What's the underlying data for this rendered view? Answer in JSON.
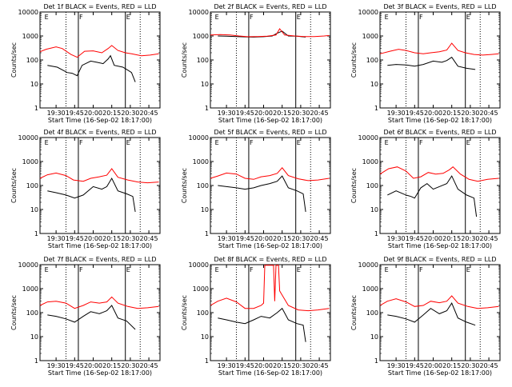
{
  "figure": {
    "xaxis_label": "Start Time (16-Sep-02 18:17:00)",
    "yaxis_label": "Counts/sec",
    "y_tick_labels": [
      "1",
      "10",
      "100",
      "1000",
      "10000"
    ],
    "x_tick_labels": [
      "19:30",
      "19:45",
      "20:00",
      "20:15",
      "20:30",
      "20:45"
    ],
    "legend_colors": {
      "events": "#000000",
      "lld": "#ff0000"
    }
  },
  "chart_data": [
    {
      "type": "line",
      "title": "Det 1f BLACK = Events, RED = LLD",
      "markers": [
        "E",
        "F",
        "E"
      ],
      "yscale": "log",
      "ylim": [
        1,
        10000
      ],
      "xlim": [
        "19:17",
        "20:54"
      ],
      "series": [
        {
          "name": "Events",
          "color": "#000000",
          "x": [
            "19:23",
            "19:31",
            "19:39",
            "19:43",
            "19:47",
            "19:51",
            "19:58",
            "20:03",
            "20:08",
            "20:12",
            "20:14",
            "20:17",
            "20:24",
            "20:29",
            "20:31",
            "20:34"
          ],
          "y": [
            60,
            50,
            30,
            28,
            22,
            60,
            90,
            80,
            70,
            110,
            150,
            60,
            50,
            35,
            30,
            12
          ]
        },
        {
          "name": "LLD",
          "color": "#ff0000",
          "x": [
            "19:17",
            "19:22",
            "19:30",
            "19:35",
            "19:42",
            "19:47",
            "19:53",
            "20:00",
            "20:07",
            "20:12",
            "20:15",
            "20:20",
            "20:26",
            "20:31",
            "20:39",
            "20:46",
            "20:53"
          ],
          "y": [
            220,
            280,
            350,
            300,
            170,
            130,
            230,
            240,
            200,
            300,
            400,
            250,
            200,
            180,
            150,
            160,
            180
          ]
        }
      ]
    },
    {
      "type": "line",
      "title": "Det 2f BLACK = Events, RED = LLD",
      "markers": [
        "E",
        "F",
        "E"
      ],
      "yscale": "log",
      "ylim": [
        1,
        10000
      ],
      "xlim": [
        "19:17",
        "20:54"
      ],
      "series": [
        {
          "name": "Events",
          "color": "#000000",
          "x": [
            "19:23",
            "19:30",
            "19:38",
            "19:45",
            "19:52",
            "20:00",
            "20:07",
            "20:11",
            "20:15",
            "20:20",
            "20:27",
            "20:34"
          ],
          "y": [
            1000,
            980,
            950,
            920,
            900,
            930,
            1000,
            1300,
            1600,
            1000,
            980,
            900
          ]
        },
        {
          "name": "LLD",
          "color": "#ff0000",
          "x": [
            "19:17",
            "19:25",
            "19:33",
            "19:40",
            "19:47",
            "19:55",
            "20:03",
            "20:10",
            "20:13",
            "20:17",
            "20:25",
            "20:33",
            "20:41",
            "20:49",
            "20:53"
          ],
          "y": [
            1100,
            1150,
            1100,
            1000,
            930,
            950,
            980,
            1100,
            2000,
            1100,
            1000,
            950,
            950,
            1000,
            1050
          ]
        }
      ]
    },
    {
      "type": "line",
      "title": "Det 3f BLACK = Events, RED = LLD",
      "markers": [
        "E",
        "F",
        "E"
      ],
      "yscale": "log",
      "ylim": [
        1,
        10000
      ],
      "xlim": [
        "19:17",
        "20:54"
      ],
      "series": [
        {
          "name": "Events",
          "color": "#000000",
          "x": [
            "19:23",
            "19:30",
            "19:38",
            "19:45",
            "19:52",
            "20:00",
            "20:07",
            "20:11",
            "20:15",
            "20:20",
            "20:27",
            "20:34"
          ],
          "y": [
            60,
            65,
            62,
            55,
            65,
            90,
            80,
            95,
            130,
            55,
            45,
            40
          ]
        },
        {
          "name": "LLD",
          "color": "#ff0000",
          "x": [
            "19:17",
            "19:25",
            "19:32",
            "19:38",
            "19:45",
            "19:52",
            "19:58",
            "20:05",
            "20:11",
            "20:15",
            "20:20",
            "20:26",
            "20:33",
            "20:40",
            "20:47",
            "20:53"
          ],
          "y": [
            180,
            230,
            280,
            250,
            200,
            180,
            200,
            220,
            260,
            500,
            250,
            200,
            170,
            160,
            170,
            180
          ]
        }
      ]
    },
    {
      "type": "line",
      "title": "Det 4f BLACK = Events, RED = LLD",
      "markers": [
        "E",
        "F",
        "E"
      ],
      "yscale": "log",
      "ylim": [
        1,
        10000
      ],
      "xlim": [
        "19:17",
        "20:54"
      ],
      "series": [
        {
          "name": "Events",
          "color": "#000000",
          "x": [
            "19:23",
            "19:30",
            "19:38",
            "19:45",
            "19:52",
            "20:00",
            "20:07",
            "20:11",
            "20:15",
            "20:20",
            "20:27",
            "20:32",
            "20:34"
          ],
          "y": [
            60,
            50,
            40,
            30,
            40,
            90,
            70,
            90,
            200,
            60,
            45,
            35,
            8
          ]
        },
        {
          "name": "LLD",
          "color": "#ff0000",
          "x": [
            "19:17",
            "19:23",
            "19:30",
            "19:38",
            "19:44",
            "19:52",
            "19:58",
            "20:05",
            "20:11",
            "20:15",
            "20:20",
            "20:28",
            "20:36",
            "20:44",
            "20:53"
          ],
          "y": [
            200,
            280,
            330,
            260,
            170,
            150,
            200,
            230,
            270,
            500,
            220,
            170,
            140,
            130,
            140
          ]
        }
      ]
    },
    {
      "type": "line",
      "title": "Det 5f BLACK = Events, RED = LLD",
      "markers": [
        "E",
        "F",
        "E"
      ],
      "yscale": "log",
      "ylim": [
        1,
        10000
      ],
      "xlim": [
        "19:17",
        "20:54"
      ],
      "series": [
        {
          "name": "Events",
          "color": "#000000",
          "x": [
            "19:23",
            "19:30",
            "19:38",
            "19:45",
            "19:52",
            "19:58",
            "20:05",
            "20:11",
            "20:15",
            "20:20",
            "20:27",
            "20:32",
            "20:34"
          ],
          "y": [
            100,
            90,
            80,
            70,
            80,
            100,
            120,
            150,
            250,
            80,
            60,
            45,
            8
          ]
        },
        {
          "name": "LLD",
          "color": "#ff0000",
          "x": [
            "19:17",
            "19:23",
            "19:30",
            "19:38",
            "19:45",
            "19:52",
            "19:58",
            "20:05",
            "20:11",
            "20:15",
            "20:20",
            "20:28",
            "20:36",
            "20:44",
            "20:53"
          ],
          "y": [
            200,
            250,
            330,
            300,
            200,
            180,
            230,
            260,
            320,
            550,
            260,
            190,
            160,
            170,
            200
          ]
        }
      ]
    },
    {
      "type": "line",
      "title": "Det 6f BLACK = Events, RED = LLD",
      "markers": [
        "E",
        "F",
        "E"
      ],
      "yscale": "log",
      "ylim": [
        1,
        10000
      ],
      "xlim": [
        "19:17",
        "20:54"
      ],
      "series": [
        {
          "name": "Events",
          "color": "#000000",
          "x": [
            "19:23",
            "19:30",
            "19:38",
            "19:42",
            "19:45",
            "19:50",
            "19:55",
            "20:00",
            "20:05",
            "20:11",
            "20:15",
            "20:20",
            "20:27",
            "20:33",
            "20:35"
          ],
          "y": [
            40,
            60,
            40,
            35,
            30,
            80,
            120,
            70,
            90,
            120,
            250,
            70,
            40,
            30,
            5
          ]
        },
        {
          "name": "LLD",
          "color": "#ff0000",
          "x": [
            "19:17",
            "19:24",
            "19:31",
            "19:38",
            "19:44",
            "19:50",
            "19:56",
            "20:02",
            "20:08",
            "20:13",
            "20:16",
            "20:22",
            "20:29",
            "20:36",
            "20:44",
            "20:53"
          ],
          "y": [
            300,
            500,
            600,
            400,
            200,
            230,
            350,
            300,
            320,
            450,
            600,
            300,
            180,
            150,
            180,
            200
          ]
        }
      ]
    },
    {
      "type": "line",
      "title": "Det 7f BLACK = Events, RED = LLD",
      "markers": [
        "E",
        "F",
        "E"
      ],
      "yscale": "log",
      "ylim": [
        1,
        10000
      ],
      "xlim": [
        "19:17",
        "20:54"
      ],
      "series": [
        {
          "name": "Events",
          "color": "#000000",
          "x": [
            "19:23",
            "19:30",
            "19:38",
            "19:45",
            "19:52",
            "19:58",
            "20:05",
            "20:11",
            "20:15",
            "20:20",
            "20:27",
            "20:34"
          ],
          "y": [
            80,
            70,
            55,
            40,
            70,
            110,
            90,
            120,
            200,
            60,
            45,
            20
          ]
        },
        {
          "name": "LLD",
          "color": "#ff0000",
          "x": [
            "19:17",
            "19:23",
            "19:30",
            "19:38",
            "19:45",
            "19:52",
            "19:58",
            "20:05",
            "20:11",
            "20:15",
            "20:20",
            "20:28",
            "20:36",
            "20:44",
            "20:53"
          ],
          "y": [
            200,
            280,
            300,
            250,
            150,
            200,
            280,
            250,
            280,
            450,
            250,
            180,
            150,
            160,
            180
          ]
        }
      ]
    },
    {
      "type": "line",
      "title": "Det 8f BLACK = Events, RED = LLD",
      "markers": [
        "E",
        "F",
        "E"
      ],
      "yscale": "log",
      "ylim": [
        1,
        10000
      ],
      "xlim": [
        "19:17",
        "20:54"
      ],
      "series": [
        {
          "name": "Events",
          "color": "#000000",
          "x": [
            "19:23",
            "19:30",
            "19:38",
            "19:45",
            "19:52",
            "19:58",
            "20:05",
            "20:11",
            "20:15",
            "20:20",
            "20:27",
            "20:32",
            "20:34"
          ],
          "y": [
            60,
            50,
            40,
            35,
            50,
            70,
            60,
            100,
            150,
            50,
            35,
            30,
            6
          ]
        },
        {
          "name": "LLD",
          "color": "#ff0000",
          "x": [
            "19:17",
            "19:23",
            "19:30",
            "19:38",
            "19:45",
            "19:52",
            "19:58",
            "20:00",
            "20:01",
            "20:08",
            "20:09",
            "20:10",
            "20:12",
            "20:13",
            "20:20",
            "20:28",
            "20:36",
            "20:44",
            "20:53"
          ],
          "y": [
            200,
            300,
            400,
            280,
            150,
            150,
            200,
            250,
            9500,
            9500,
            300,
            9500,
            9500,
            800,
            200,
            130,
            120,
            130,
            150
          ]
        }
      ]
    },
    {
      "type": "line",
      "title": "Det 9f BLACK = Events, RED = LLD",
      "markers": [
        "E",
        "F",
        "E"
      ],
      "yscale": "log",
      "ylim": [
        1,
        10000
      ],
      "xlim": [
        "19:17",
        "20:54"
      ],
      "series": [
        {
          "name": "Events",
          "color": "#000000",
          "x": [
            "19:23",
            "19:30",
            "19:38",
            "19:45",
            "19:52",
            "19:58",
            "20:05",
            "20:11",
            "20:15",
            "20:20",
            "20:27",
            "20:34"
          ],
          "y": [
            80,
            70,
            55,
            40,
            80,
            150,
            90,
            120,
            250,
            60,
            40,
            30
          ]
        },
        {
          "name": "LLD",
          "color": "#ff0000",
          "x": [
            "19:17",
            "19:23",
            "19:30",
            "19:38",
            "19:45",
            "19:52",
            "19:58",
            "20:05",
            "20:11",
            "20:15",
            "20:20",
            "20:28",
            "20:36",
            "20:44",
            "20:53"
          ],
          "y": [
            200,
            300,
            380,
            280,
            180,
            200,
            300,
            260,
            300,
            500,
            250,
            180,
            150,
            160,
            180
          ]
        }
      ]
    }
  ]
}
